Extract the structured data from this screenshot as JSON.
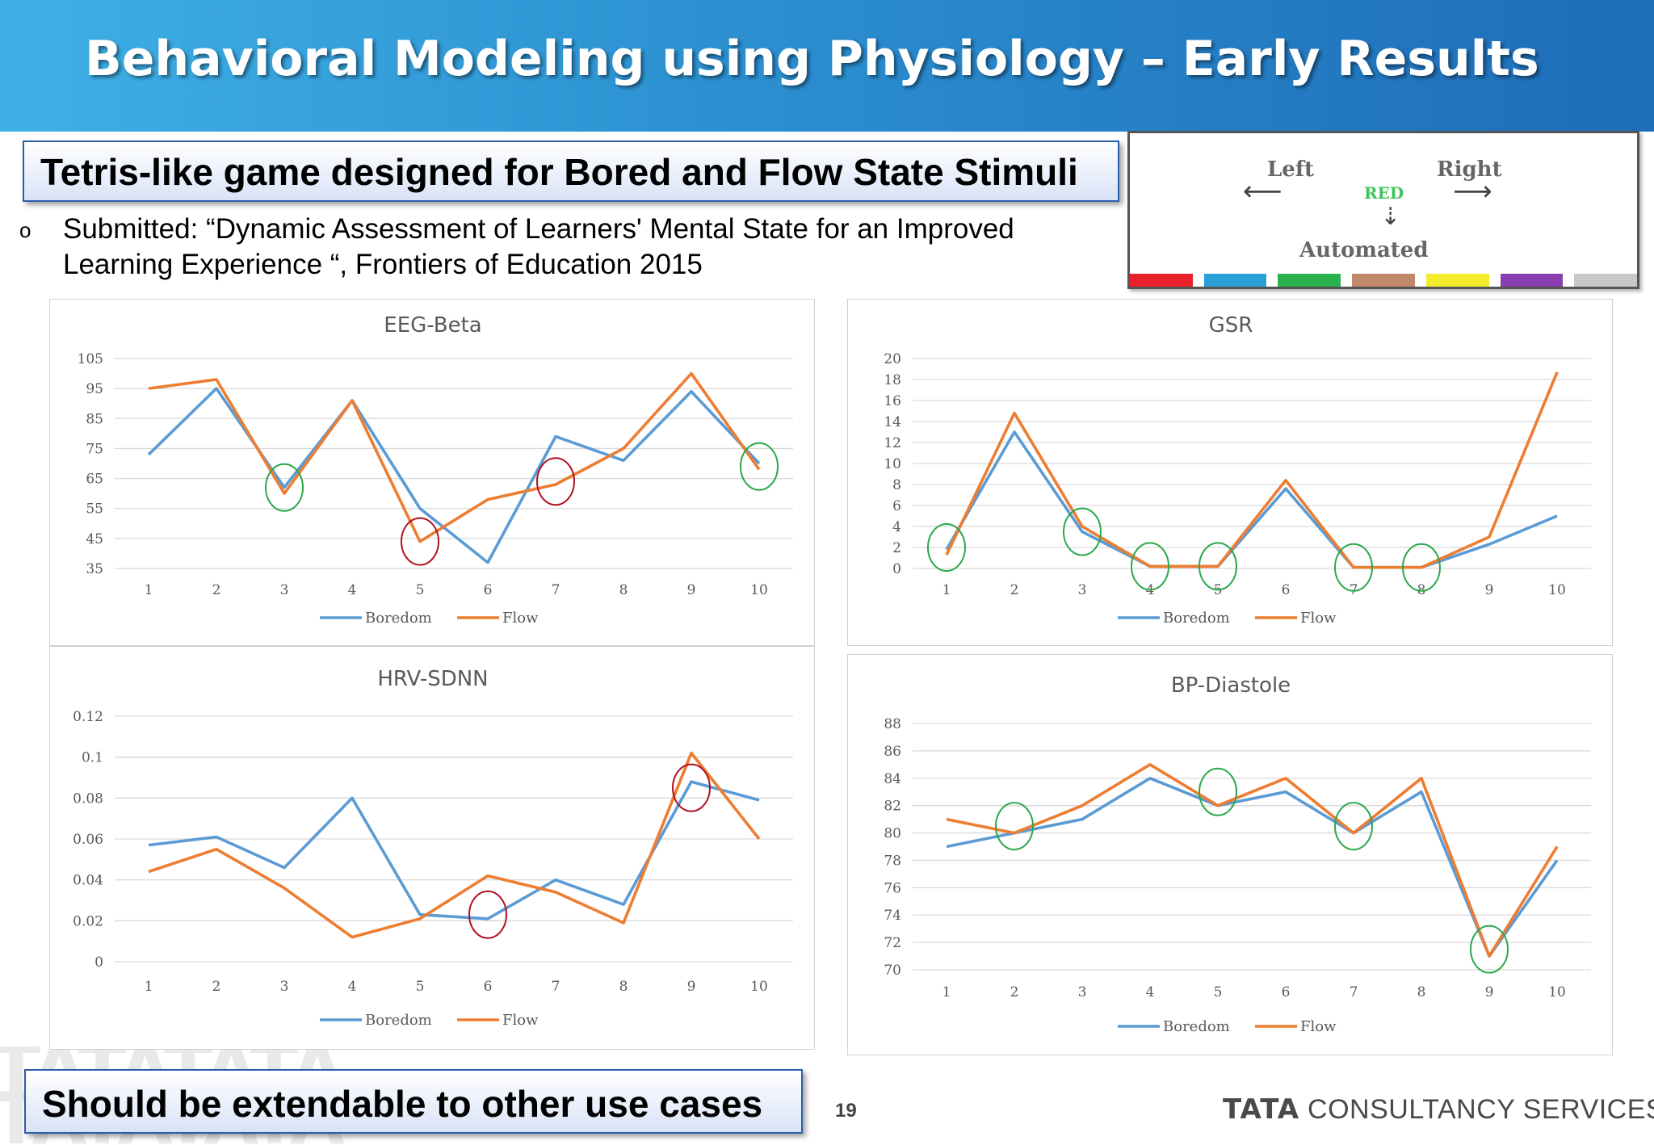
{
  "header": {
    "title": "Behavioral Modeling using Physiology – Early Results"
  },
  "callout_top": "Tetris-like game designed for Bored and Flow State Stimuli",
  "bullet": {
    "marker": "o",
    "text": "Submitted: “Dynamic Assessment of Learners' Mental State for an Improved Learning Experience “, Frontiers of Education 2015"
  },
  "controls_legend": {
    "left": "Left",
    "right": "Right",
    "center": "RED",
    "automated": "Automated",
    "colors": [
      "#e8202a",
      "#2a9fd8",
      "#2bb24c",
      "#c08a6a",
      "#f2ec2c",
      "#8a3fb0",
      "#c8c8c8"
    ]
  },
  "colors": {
    "boredom": "#5b9bd5",
    "flow": "#ed7d31",
    "green_marker": "#2aa84a",
    "red_marker": "#b01020"
  },
  "chart_data": [
    {
      "type": "line",
      "title": "EEG-Beta",
      "categories": [
        "1",
        "2",
        "3",
        "4",
        "5",
        "6",
        "7",
        "8",
        "9",
        "10"
      ],
      "ylim": [
        35,
        105
      ],
      "yticks": [
        105,
        95,
        85,
        75,
        65,
        55,
        45,
        35
      ],
      "grid": true,
      "legend_position": "bottom",
      "series": [
        {
          "name": "Boredom",
          "values": [
            73,
            95,
            62,
            91,
            55,
            37,
            79,
            71,
            94,
            70
          ]
        },
        {
          "name": "Flow",
          "values": [
            95,
            98,
            60,
            91,
            44,
            58,
            63,
            75,
            100,
            68
          ]
        }
      ],
      "markers": [
        {
          "x": "3",
          "y": 62,
          "color": "green"
        },
        {
          "x": "5",
          "y": 44,
          "color": "red"
        },
        {
          "x": "7",
          "y": 64,
          "color": "red"
        },
        {
          "x": "10",
          "y": 69,
          "color": "green"
        }
      ]
    },
    {
      "type": "line",
      "title": "GSR",
      "categories": [
        "1",
        "2",
        "3",
        "4",
        "5",
        "6",
        "7",
        "8",
        "9",
        "10"
      ],
      "ylim": [
        0,
        20
      ],
      "yticks": [
        20,
        18,
        16,
        14,
        12,
        10,
        8,
        6,
        4,
        2,
        0
      ],
      "grid": true,
      "legend_position": "bottom",
      "series": [
        {
          "name": "Boredom",
          "values": [
            1.8,
            13,
            3.5,
            0.2,
            0.2,
            7.6,
            0.1,
            0.1,
            2.3,
            5
          ]
        },
        {
          "name": "Flow",
          "values": [
            1.3,
            14.8,
            4,
            0.2,
            0.2,
            8.4,
            0.1,
            0.1,
            3,
            18.7
          ]
        }
      ],
      "markers": [
        {
          "x": "1",
          "y": 2,
          "color": "green"
        },
        {
          "x": "3",
          "y": 3.5,
          "color": "green"
        },
        {
          "x": "4",
          "y": 0.2,
          "color": "green"
        },
        {
          "x": "5",
          "y": 0.2,
          "color": "green"
        },
        {
          "x": "7",
          "y": 0.1,
          "color": "green"
        },
        {
          "x": "8",
          "y": 0.1,
          "color": "green"
        }
      ]
    },
    {
      "type": "line",
      "title": "HRV-SDNN",
      "categories": [
        "1",
        "2",
        "3",
        "4",
        "5",
        "6",
        "7",
        "8",
        "9",
        "10"
      ],
      "ylim": [
        0,
        0.12
      ],
      "yticks": [
        "0.12",
        "0.1",
        "0.08",
        "0.06",
        "0.04",
        "0.02",
        "0"
      ],
      "grid": true,
      "legend_position": "bottom",
      "series": [
        {
          "name": "Boredom",
          "values": [
            0.057,
            0.061,
            0.046,
            0.08,
            0.023,
            0.021,
            0.04,
            0.028,
            0.088,
            0.079
          ]
        },
        {
          "name": "Flow",
          "values": [
            0.044,
            0.055,
            0.036,
            0.012,
            0.021,
            0.042,
            0.034,
            0.019,
            0.102,
            0.06
          ]
        }
      ],
      "markers": [
        {
          "x": "6",
          "y": 0.023,
          "color": "red"
        },
        {
          "x": "9",
          "y": 0.085,
          "color": "red"
        }
      ]
    },
    {
      "type": "line",
      "title": "BP-Diastole",
      "categories": [
        "1",
        "2",
        "3",
        "4",
        "5",
        "6",
        "7",
        "8",
        "9",
        "10"
      ],
      "ylim": [
        70,
        88
      ],
      "yticks": [
        88,
        86,
        84,
        82,
        80,
        78,
        76,
        74,
        72,
        70
      ],
      "grid": true,
      "legend_position": "bottom",
      "series": [
        {
          "name": "Boredom",
          "values": [
            79,
            80,
            81,
            84,
            82,
            83,
            80,
            83,
            71,
            78
          ]
        },
        {
          "name": "Flow",
          "values": [
            81,
            80,
            82,
            85,
            82,
            84,
            80,
            84,
            71,
            79
          ]
        }
      ],
      "markers": [
        {
          "x": "2",
          "y": 80.5,
          "color": "green"
        },
        {
          "x": "5",
          "y": 83,
          "color": "green"
        },
        {
          "x": "7",
          "y": 80.5,
          "color": "green"
        },
        {
          "x": "9",
          "y": 71.5,
          "color": "green"
        }
      ]
    }
  ],
  "callout_bottom": "Should be extendable to other use cases",
  "page_number": "19",
  "footer": {
    "brand_strong": "TATA",
    "brand_rest": "CONSULTANCY SERVICES"
  },
  "watermark": "TATATATA"
}
